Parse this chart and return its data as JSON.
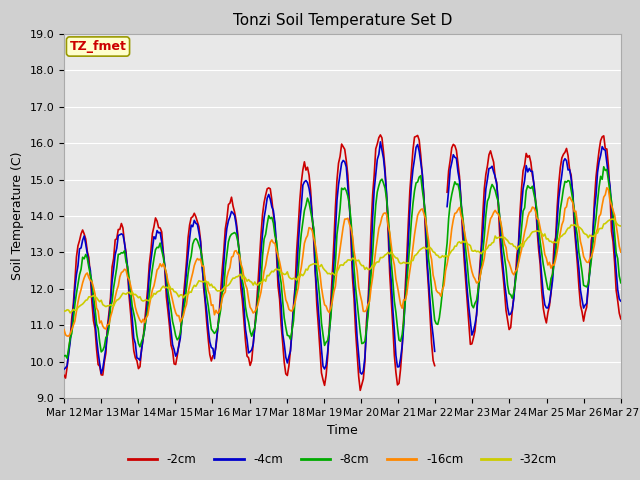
{
  "title": "Tonzi Soil Temperature Set D",
  "xlabel": "Time",
  "ylabel": "Soil Temperature (C)",
  "ylim": [
    9.0,
    19.0
  ],
  "yticks": [
    9.0,
    10.0,
    11.0,
    12.0,
    13.0,
    14.0,
    15.0,
    16.0,
    17.0,
    18.0,
    19.0
  ],
  "xtick_labels": [
    "Mar 12",
    "Mar 13",
    "Mar 14",
    "Mar 15",
    "Mar 16",
    "Mar 17",
    "Mar 18",
    "Mar 19",
    "Mar 20",
    "Mar 21",
    "Mar 22",
    "Mar 23",
    "Mar 24",
    "Mar 25",
    "Mar 26",
    "Mar 27"
  ],
  "legend_labels": [
    "-2cm",
    "-4cm",
    "-8cm",
    "-16cm",
    "-32cm"
  ],
  "legend_colors": [
    "#cc0000",
    "#0000cc",
    "#00aa00",
    "#ff8800",
    "#cccc00"
  ],
  "line_widths": [
    1.2,
    1.2,
    1.2,
    1.2,
    1.2
  ],
  "bg_color": "#e8e8e8",
  "grid_color": "#ffffff",
  "annotation_text": "TZ_fmet",
  "annotation_bg": "#ffffcc",
  "annotation_border": "#999900",
  "annotation_color": "#cc0000",
  "fig_bg": "#d0d0d0"
}
